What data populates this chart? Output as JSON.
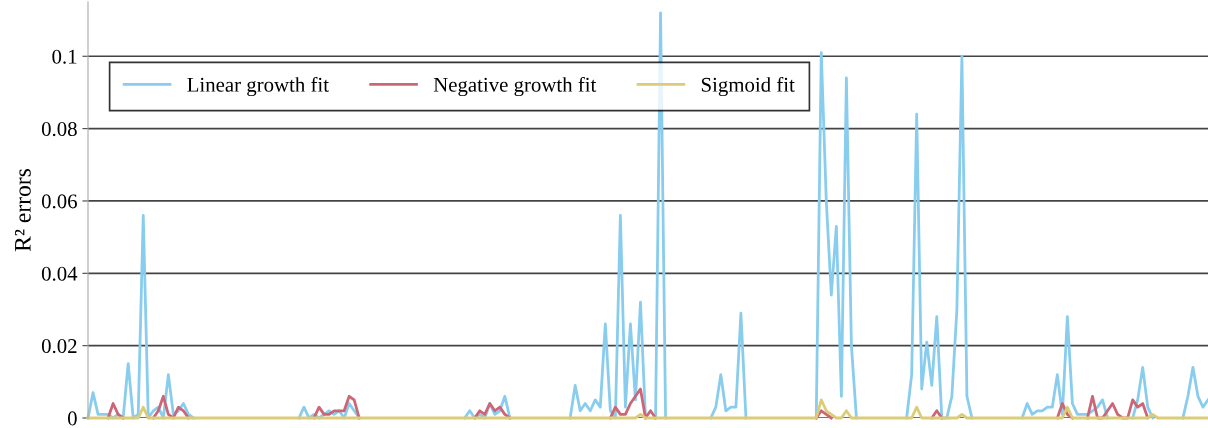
{
  "chart_data": {
    "type": "line",
    "ylabel": "R² errors",
    "categories": [
      null,
      null,
      null,
      null,
      null,
      null,
      null,
      null,
      null,
      null,
      null,
      null,
      null,
      null,
      null,
      null,
      null,
      null,
      null,
      null,
      null,
      null,
      null,
      null,
      null,
      null,
      null,
      null,
      null,
      null,
      null,
      null,
      null,
      null,
      null,
      null,
      null,
      null,
      null,
      null,
      null,
      null,
      null,
      null,
      null,
      null,
      null,
      null,
      null,
      null,
      null,
      null,
      null,
      null,
      null,
      null,
      null,
      null,
      null,
      null,
      null,
      null,
      null,
      null,
      null,
      null,
      null,
      null,
      null,
      null,
      null,
      null,
      null,
      null,
      null,
      null,
      null,
      null,
      null,
      null,
      null,
      null,
      null,
      null,
      null,
      null,
      null,
      null,
      null,
      null,
      null,
      null,
      null,
      null,
      null,
      null,
      null,
      null,
      null,
      null,
      null,
      null,
      null,
      null,
      null,
      null,
      null,
      null,
      null,
      null,
      null,
      null,
      null,
      null,
      null,
      null,
      null,
      null,
      null,
      null,
      null,
      null,
      null,
      null,
      null,
      null,
      null,
      null,
      null,
      null,
      null,
      null,
      null,
      null,
      null,
      null,
      null,
      null,
      null,
      null,
      null,
      null,
      null,
      null,
      null,
      null,
      null,
      null,
      null,
      null,
      null,
      null,
      null,
      null,
      null,
      null,
      null,
      null,
      null,
      null,
      null,
      null,
      null,
      null,
      null,
      null,
      null,
      null,
      null,
      null,
      null,
      null,
      null,
      null,
      null,
      null,
      null,
      null,
      null,
      null,
      null,
      null,
      null,
      null,
      null,
      null,
      null,
      null,
      null,
      null,
      null,
      null,
      null,
      null,
      null,
      null,
      null,
      null,
      null,
      null,
      null,
      null,
      null,
      null,
      null,
      null,
      null,
      null,
      null,
      null,
      null,
      null,
      null,
      null,
      null,
      null,
      null,
      null,
      null,
      null,
      null,
      null,
      null,
      null
    ],
    "series": [
      {
        "name": "Linear growth fit",
        "color": "#88ccee",
        "values": [
          0,
          0.007,
          0.001,
          0.001,
          0.001,
          0,
          0.001,
          0,
          0.015,
          0,
          0.001,
          0.056,
          0,
          0.002,
          0.003,
          0,
          0.012,
          0.001,
          0.002,
          0.004,
          0.001,
          0,
          null,
          null,
          null,
          null,
          null,
          null,
          null,
          null,
          null,
          null,
          null,
          null,
          null,
          null,
          null,
          null,
          null,
          null,
          null,
          null,
          0,
          0.003,
          0,
          0.001,
          0,
          0.001,
          0.002,
          0.001,
          0.002,
          0,
          0.004,
          0.002,
          0,
          null,
          null,
          null,
          null,
          null,
          null,
          null,
          null,
          null,
          null,
          null,
          null,
          null,
          null,
          null,
          null,
          null,
          null,
          null,
          null,
          0,
          0.002,
          0,
          0.001,
          0,
          0.004,
          0.001,
          0.002,
          0.006,
          0,
          null,
          null,
          null,
          null,
          null,
          null,
          null,
          null,
          null,
          null,
          null,
          0,
          0.009,
          0.002,
          0.004,
          0.002,
          0.005,
          0.003,
          0.026,
          0.002,
          0,
          0.056,
          0.003,
          0.026,
          0.005,
          0.032,
          0,
          null,
          0,
          0.112,
          0,
          null,
          null,
          null,
          null,
          null,
          null,
          null,
          null,
          0,
          0.003,
          0.012,
          0.002,
          0.003,
          0.003,
          0.029,
          0,
          null,
          null,
          null,
          null,
          null,
          null,
          null,
          null,
          null,
          null,
          null,
          null,
          null,
          0,
          0.101,
          0.06,
          0.034,
          0.053,
          0.006,
          0.094,
          0.02,
          0,
          null,
          null,
          null,
          null,
          null,
          null,
          null,
          null,
          null,
          0,
          0.012,
          0.084,
          0.008,
          0.021,
          0.009,
          0.028,
          0,
          0,
          0.006,
          0.03,
          0.1,
          0.006,
          0,
          null,
          null,
          null,
          null,
          null,
          null,
          null,
          null,
          null,
          0,
          0.004,
          0.001,
          0.002,
          0.002,
          0.003,
          0.003,
          0.012,
          0.001,
          0.028,
          0.004,
          0.001,
          0.001,
          0.001,
          0.002,
          0.003,
          0.005,
          0,
          null,
          null,
          null,
          null,
          0,
          0.005,
          0.014,
          0.003,
          0,
          null,
          null,
          null,
          null,
          null,
          0,
          0.006,
          0.014,
          0.006,
          0.003,
          0.005
        ]
      },
      {
        "name": "Negative growth fit",
        "color": "#cc6677",
        "values": [
          null,
          null,
          null,
          null,
          0,
          0.004,
          0.001,
          0,
          null,
          null,
          null,
          null,
          null,
          0,
          0.002,
          0.006,
          0.001,
          0,
          0.003,
          0.002,
          0,
          null,
          null,
          null,
          null,
          null,
          null,
          null,
          null,
          null,
          null,
          null,
          null,
          null,
          null,
          null,
          null,
          null,
          null,
          null,
          null,
          null,
          null,
          null,
          null,
          0,
          0.003,
          0.001,
          0.001,
          0.002,
          0.002,
          0.002,
          0.006,
          0.005,
          0,
          null,
          null,
          null,
          null,
          null,
          null,
          null,
          null,
          null,
          null,
          null,
          null,
          null,
          null,
          null,
          null,
          null,
          null,
          null,
          null,
          null,
          null,
          0,
          0.002,
          0.001,
          0.004,
          0.002,
          0.003,
          0.001,
          0,
          null,
          null,
          null,
          null,
          null,
          null,
          null,
          null,
          null,
          null,
          null,
          null,
          null,
          null,
          null,
          null,
          null,
          null,
          null,
          0,
          0.003,
          0.001,
          0.001,
          0.004,
          0.006,
          0.008,
          0,
          0.002,
          0,
          null,
          null,
          null,
          null,
          null,
          null,
          null,
          null,
          null,
          null,
          null,
          null,
          null,
          null,
          null,
          null,
          null,
          null,
          null,
          null,
          null,
          null,
          null,
          null,
          null,
          null,
          null,
          null,
          null,
          null,
          null,
          0,
          0.002,
          0.001,
          0,
          null,
          null,
          null,
          null,
          null,
          null,
          null,
          null,
          null,
          null,
          null,
          null,
          null,
          null,
          null,
          null,
          null,
          null,
          null,
          0,
          0.002,
          0,
          null,
          null,
          null,
          null,
          null,
          null,
          null,
          null,
          null,
          null,
          null,
          null,
          null,
          null,
          null,
          null,
          null,
          null,
          null,
          null,
          null,
          null,
          0,
          0.004,
          0.001,
          0,
          null,
          null,
          0,
          0.006,
          0,
          0,
          0.002,
          0.004,
          0.001,
          0,
          0,
          0.005,
          0.003,
          0.004,
          0,
          null,
          null,
          null,
          null,
          null,
          null,
          null,
          null,
          null,
          null,
          null,
          null
        ]
      },
      {
        "name": "Sigmoid fit",
        "color": "#ddcc77",
        "values": [
          0,
          0,
          0,
          0,
          0,
          0,
          0,
          0,
          0,
          0,
          0,
          0.003,
          0,
          0,
          0,
          0,
          0,
          0,
          0,
          0,
          0,
          0,
          0,
          0,
          0,
          0,
          0,
          0,
          0,
          0,
          0,
          0,
          0,
          0,
          0,
          0,
          0,
          0,
          0,
          0,
          0,
          0,
          0,
          0,
          0,
          0,
          0,
          0,
          0,
          0,
          0,
          0,
          0,
          0,
          0,
          0,
          0,
          0,
          0,
          0,
          0,
          0,
          0,
          0,
          0,
          0,
          0,
          0,
          0,
          0,
          0,
          0,
          0,
          0,
          0,
          0,
          0,
          0,
          0,
          0,
          0,
          0,
          0,
          0,
          0,
          0,
          0,
          0,
          0,
          0,
          0,
          0,
          0,
          0,
          0,
          0,
          0,
          0,
          0,
          0,
          0,
          0,
          0,
          0,
          0,
          0,
          0,
          0,
          0,
          0,
          0.001,
          0,
          0,
          0,
          0,
          0,
          0,
          0,
          0,
          0,
          0,
          0,
          0,
          0,
          0,
          0,
          0,
          0,
          0,
          0,
          0,
          0,
          0,
          0,
          0,
          0,
          0,
          0,
          0,
          0,
          0,
          0,
          0,
          0,
          0,
          0,
          0.005,
          0.002,
          0.001,
          0,
          0,
          0.002,
          0,
          0,
          0,
          0,
          0,
          0,
          0,
          0,
          0,
          0,
          0,
          0,
          0,
          0.003,
          0,
          0,
          0,
          0,
          0,
          0,
          0,
          0,
          0.001,
          0,
          0,
          0,
          0,
          0,
          0,
          0,
          0,
          0,
          0,
          0,
          0,
          0,
          0,
          0,
          0,
          0,
          0,
          0,
          0,
          0.003,
          0,
          0,
          0,
          0,
          0,
          0,
          0,
          0,
          0,
          0,
          0,
          0,
          0,
          0,
          0,
          0,
          0.001,
          0,
          0,
          0,
          0,
          0,
          0,
          0,
          0,
          0,
          0,
          0
        ]
      }
    ],
    "ylim": [
      0,
      0.115
    ],
    "yticks": [
      0,
      0.02,
      0.04,
      0.06,
      0.08,
      0.1
    ],
    "grid": "y",
    "legend": "top left",
    "tick_labels": "y"
  }
}
